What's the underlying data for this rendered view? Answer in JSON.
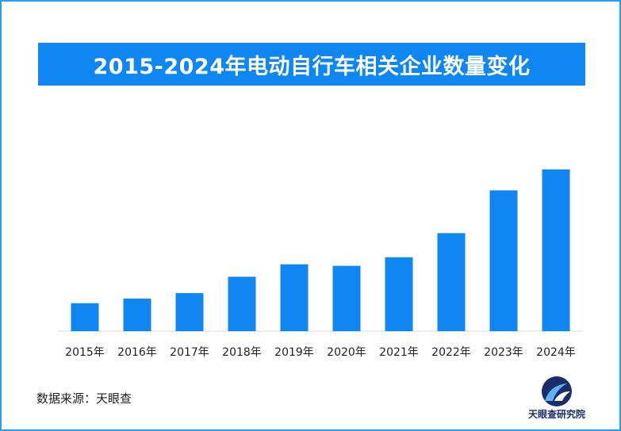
{
  "chart_data": {
    "type": "bar",
    "title": "2015-2024年电动自行车相关企业数量变化",
    "categories": [
      "2015年",
      "2016年",
      "2017年",
      "2018年",
      "2019年",
      "2020年",
      "2021年",
      "2022年",
      "2023年",
      "2024年"
    ],
    "values": [
      36,
      42,
      49,
      70,
      86,
      84,
      95,
      126,
      181,
      208
    ],
    "ylim": [
      0,
      220
    ],
    "grid": false,
    "bar_color": "#0f86f2"
  },
  "footer": {
    "source": "数据来源：天眼查",
    "logo_text": "天眼查研究院"
  },
  "colors": {
    "accent": "#0f86f2",
    "border": "#2b9cf2",
    "logo_navy": "#1a2d6b"
  }
}
